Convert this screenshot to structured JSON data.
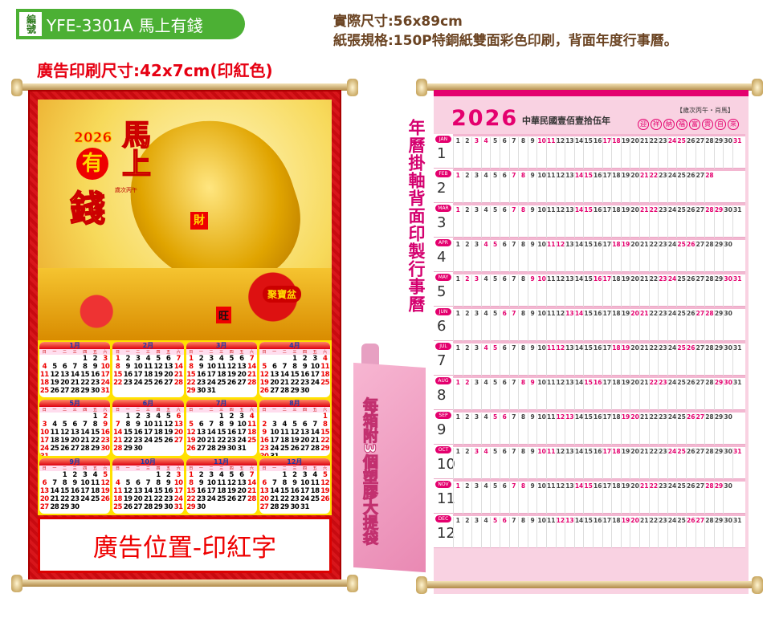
{
  "header": {
    "code_badge": "編號",
    "product": "YFE-3301A 馬上有錢",
    "actual_size": "實際尺寸:56x89cm",
    "paper_spec": "紙張規格:150P特銅紙雙面彩色印刷，背面年度行事曆。",
    "ad_print_size": "廣告印刷尺寸:42x7cm(印紅色)"
  },
  "front": {
    "year": "2026",
    "char_you": "有",
    "char_qian": "錢",
    "title_vertical": "馬上",
    "zodiac": "歲次丙午",
    "cai": "財",
    "wang": "旺",
    "pot": "聚寶盆",
    "weekdays": [
      "日",
      "一",
      "二",
      "三",
      "四",
      "五",
      "六"
    ],
    "months": [
      "1月",
      "2月",
      "3月",
      "4月",
      "5月",
      "6月",
      "7月",
      "8月",
      "9月",
      "10月",
      "11月",
      "12月"
    ],
    "ad_text": "廣告位置-印紅字"
  },
  "middle": {
    "back_note": "年曆掛軸背面印製行事曆",
    "bag_note": "每箱附3個塑膠大提袋",
    "bag_color": "#e989b3"
  },
  "back": {
    "year": "2026",
    "roc_year": "中華民國壹佰壹拾伍年",
    "zodiac": "【歲次丙午・肖馬】",
    "blessings": [
      "迎",
      "祥",
      "納",
      "福",
      "富",
      "貴",
      "自",
      "來"
    ],
    "months_en": [
      "JAN",
      "FEB",
      "MAR",
      "APR",
      "MAY",
      "JUN",
      "JUL",
      "AUG",
      "SEP",
      "OCT",
      "NOV",
      "DEC"
    ],
    "months_num": [
      "1",
      "2",
      "3",
      "4",
      "5",
      "6",
      "7",
      "8",
      "9",
      "10",
      "11",
      "12"
    ],
    "accent": "#e4006e"
  }
}
